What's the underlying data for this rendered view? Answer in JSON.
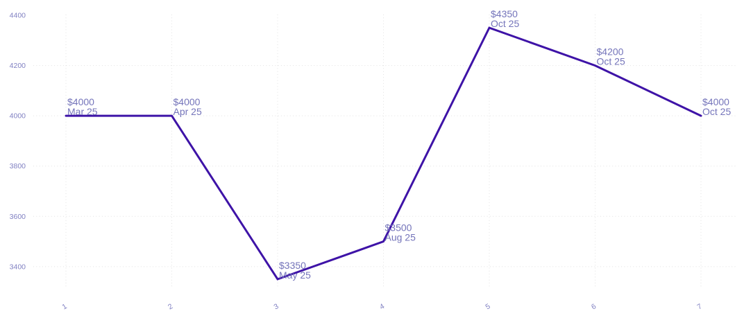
{
  "chart_data": {
    "type": "line",
    "title": "",
    "xlabel": "",
    "ylabel": "",
    "legend": "none",
    "grid": "dotted",
    "x": [
      1,
      2,
      3,
      4,
      5,
      6,
      7
    ],
    "values": [
      4000,
      4000,
      3350,
      3500,
      4350,
      4200,
      4000
    ],
    "point_labels": [
      {
        "value": "$4000",
        "date": "Mar 25"
      },
      {
        "value": "$4000",
        "date": "Apr 25"
      },
      {
        "value": "$3350",
        "date": "May 25"
      },
      {
        "value": "$3500",
        "date": "Aug 25"
      },
      {
        "value": "$4350",
        "date": "Oct 25"
      },
      {
        "value": "$4200",
        "date": "Oct 25"
      },
      {
        "value": "$4000",
        "date": "Oct 25"
      }
    ],
    "x_tick_labels": [
      "1",
      "2",
      "3",
      "4",
      "5",
      "6",
      "7"
    ],
    "y_ticks": [
      3400,
      3600,
      3800,
      4000,
      4200,
      4400
    ],
    "y_tick_labels": [
      "3400",
      "3600",
      "3800",
      "4000",
      "4200",
      "4400"
    ],
    "y_grid_ticks": [
      3400,
      3600,
      3800,
      4000,
      4200
    ],
    "xlim": [
      1,
      7
    ],
    "ylim": [
      3350,
      4400
    ],
    "colors": {
      "line": "#3e13a7",
      "point_label": "#7474ba",
      "axis_tick": "#8080c2",
      "grid": "#e2e2e2",
      "background": "#ffffff"
    }
  }
}
